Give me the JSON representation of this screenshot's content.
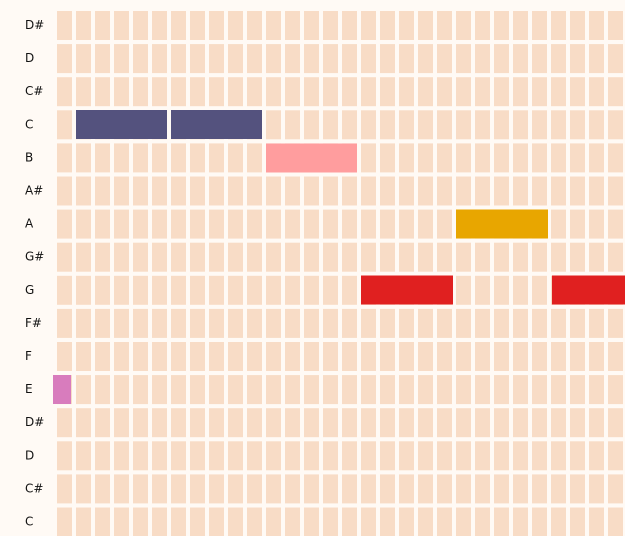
{
  "piano_roll": {
    "rows": [
      "D#",
      "D",
      "C#",
      "C",
      "B",
      "A#",
      "A",
      "G#",
      "G",
      "F#",
      "F",
      "E",
      "D#",
      "D",
      "C#",
      "C"
    ]
  }
}
